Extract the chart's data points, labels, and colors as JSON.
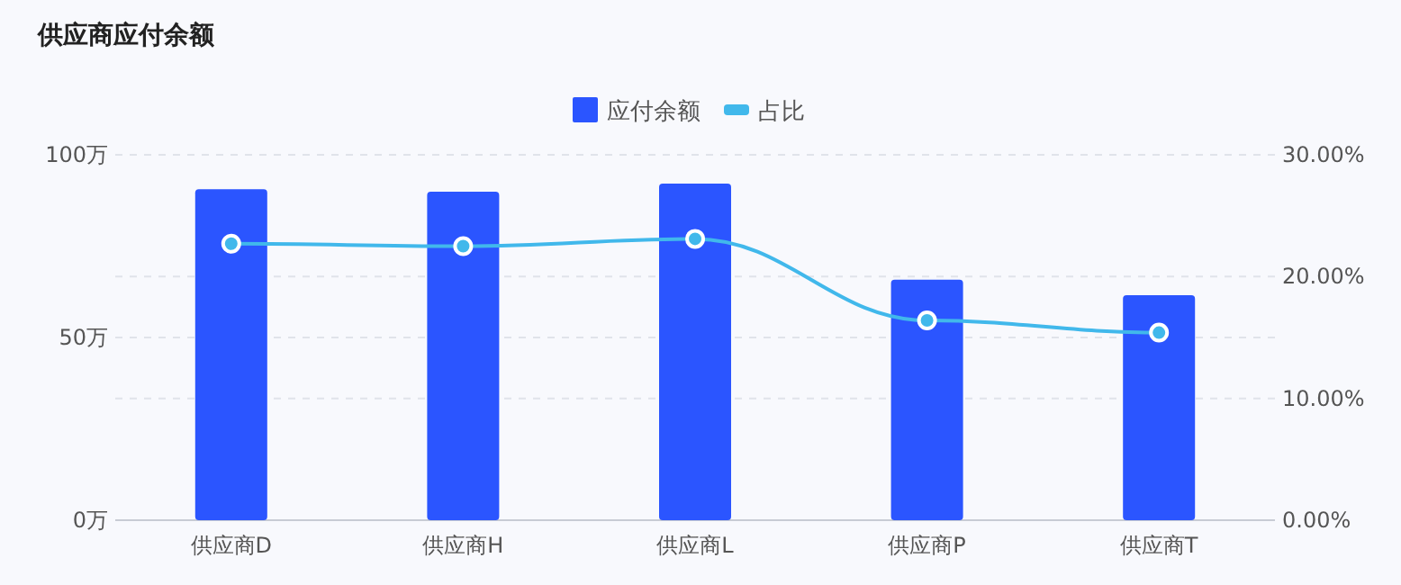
{
  "chart_data": {
    "type": "bar",
    "title": "供应商应付余额",
    "categories": [
      "供应商D",
      "供应商H",
      "供应商L",
      "供应商P",
      "供应商T"
    ],
    "series": [
      {
        "name": "应付余额",
        "color": "#2b55ff",
        "values": [
          90.6,
          89.9,
          92.1,
          65.8,
          61.6
        ]
      },
      {
        "name": "占比",
        "type": "line",
        "axis": "y2",
        "color": "#41b8eb",
        "marker": "circle",
        "values": [
          22.7,
          22.5,
          23.1,
          16.4,
          15.4
        ]
      }
    ],
    "ylim": [
      0,
      100
    ],
    "yticks": [
      {
        "value": 0,
        "label": "0万"
      },
      {
        "value": 50,
        "label": "50万"
      },
      {
        "value": 100,
        "label": "100万"
      }
    ],
    "y2lim": [
      0,
      30
    ],
    "y2ticks": [
      {
        "value": 0,
        "label": "0.00%"
      },
      {
        "value": 10,
        "label": "10.00%"
      },
      {
        "value": 20,
        "label": "20.00%"
      },
      {
        "value": 30,
        "label": "30.00%"
      }
    ],
    "grid": true,
    "legend": "top"
  }
}
